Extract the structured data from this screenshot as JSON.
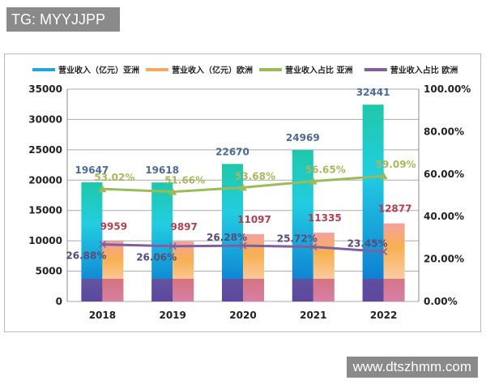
{
  "watermark_top": "TG: MYYJJPP",
  "watermark_bottom": "www.dtszhmm.com",
  "chart_data": {
    "type": "bar+line",
    "categories": [
      "2018",
      "2019",
      "2020",
      "2021",
      "2022"
    ],
    "series": [
      {
        "name": "营业收入（亿元）亚洲",
        "kind": "bar",
        "axis": "left",
        "values": [
          19647,
          19618,
          22670,
          24969,
          32441
        ],
        "labels": [
          "19647",
          "19618",
          "22670",
          "24969",
          "32441"
        ],
        "color": "#1ea8d8"
      },
      {
        "name": "营业收入（亿元）欧洲",
        "kind": "bar",
        "axis": "left",
        "values": [
          9959,
          9897,
          11097,
          11335,
          12877
        ],
        "labels": [
          "9959",
          "9897",
          "11097",
          "11335",
          "12877"
        ],
        "color": "#f4a860"
      },
      {
        "name": "营业收入占比 亚洲",
        "kind": "line",
        "axis": "right",
        "values": [
          53.02,
          51.66,
          53.68,
          56.65,
          59.09
        ],
        "labels": [
          "53.02%",
          "51.66%",
          "53.68%",
          "56.65%",
          "59.09%"
        ],
        "color": "#9bbb59"
      },
      {
        "name": "营业收入占比 欧洲",
        "kind": "line",
        "axis": "right",
        "values": [
          26.88,
          26.06,
          26.28,
          25.72,
          23.45
        ],
        "labels": [
          "26.88%",
          "26.06%",
          "26.28%",
          "25.72%",
          "23.45%"
        ],
        "color": "#7f5fa0"
      }
    ],
    "ylim_left": [
      0,
      35000
    ],
    "yticks_left": [
      "0",
      "5000",
      "10000",
      "15000",
      "20000",
      "25000",
      "30000",
      "35000"
    ],
    "ylim_right": [
      0,
      100
    ],
    "yticks_right": [
      "0.00%",
      "20.00%",
      "40.00%",
      "60.00%",
      "80.00%",
      "100.00%"
    ],
    "grid": true,
    "legend": "top"
  }
}
